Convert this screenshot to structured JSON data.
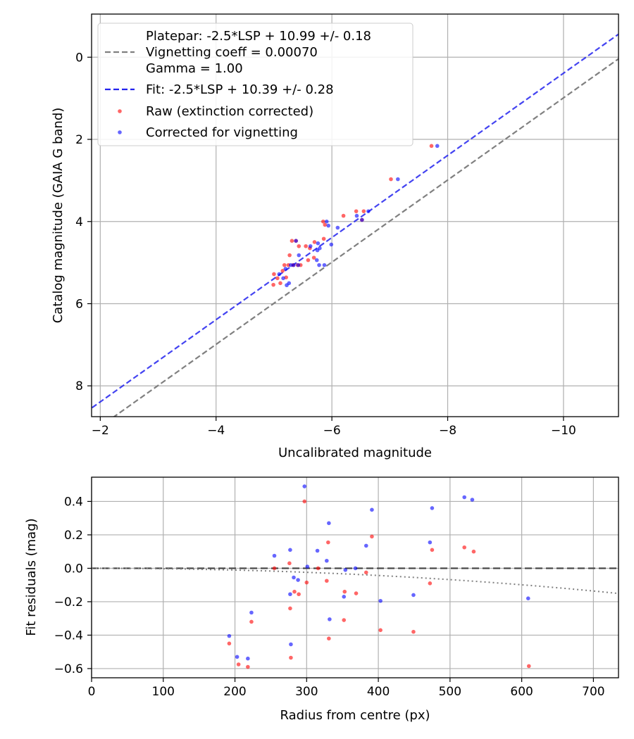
{
  "colors": {
    "raw": "#ff0000",
    "corrected": "#0000ff",
    "fit": "#2222ee",
    "platepar": "#808080",
    "grid": "#b0b0b0",
    "model": "#808080"
  },
  "chart_data": [
    {
      "type": "scatter",
      "xlabel": "Uncalibrated magnitude",
      "ylabel": "Catalog magnitude (GAIA G band)",
      "xlim": [
        -1.85,
        -10.95
      ],
      "ylim": [
        8.75,
        -1.05
      ],
      "xticks": [
        -2,
        -4,
        -6,
        -8,
        -10
      ],
      "xtick_labels": [
        "−2",
        "−4",
        "−6",
        "−8",
        "−10"
      ],
      "yticks": [
        0,
        2,
        4,
        6,
        8
      ],
      "ytick_labels": [
        "0",
        "2",
        "4",
        "6",
        "8"
      ],
      "grid": true,
      "legend": {
        "position": "top-left",
        "platepar_text": "Platepar: -2.5*LSP + 10.99 +/- 0.18",
        "vignetting_text": "Vignetting coeff = 0.00070",
        "gamma_text": "Gamma = 1.00",
        "fit_text": "Fit: -2.5*LSP + 10.39 +/- 0.28",
        "raw_text": "Raw (extinction corrected)",
        "corrected_text": "Corrected for vignetting"
      },
      "lines": [
        {
          "name": "Platepar",
          "style": "dashed",
          "color": "#808080",
          "intercept": 10.99
        },
        {
          "name": "Fit",
          "style": "dashed",
          "color": "#2222ee",
          "intercept": 10.39
        }
      ],
      "series": [
        {
          "name": "Raw (extinction corrected)",
          "color": "#ff0000",
          "points": [
            [
              -7.72,
              2.16
            ],
            [
              -7.02,
              2.97
            ],
            [
              -6.52,
              3.96
            ],
            [
              -6.42,
              3.75
            ],
            [
              -6.2,
              3.86
            ],
            [
              -6.55,
              3.75
            ],
            [
              -5.85,
              4.0
            ],
            [
              -5.88,
              4.08
            ],
            [
              -5.86,
              4.42
            ],
            [
              -5.7,
              4.5
            ],
            [
              -5.62,
              4.65
            ],
            [
              -5.55,
              4.6
            ],
            [
              -5.43,
              4.6
            ],
            [
              -5.31,
              4.47
            ],
            [
              -5.38,
              4.47
            ],
            [
              -5.27,
              4.82
            ],
            [
              -5.69,
              4.88
            ],
            [
              -5.59,
              4.94
            ],
            [
              -5.46,
              5.06
            ],
            [
              -5.41,
              5.06
            ],
            [
              -5.33,
              5.06
            ],
            [
              -5.25,
              5.06
            ],
            [
              -5.18,
              5.06
            ],
            [
              -5.21,
              5.36
            ],
            [
              -5.11,
              5.5
            ],
            [
              -5.06,
              5.38
            ],
            [
              -4.99,
              5.54
            ],
            [
              -5.0,
              5.28
            ],
            [
              -5.15,
              5.2
            ]
          ]
        },
        {
          "name": "Corrected for vignetting",
          "color": "#0000ff",
          "points": [
            [
              -7.82,
              2.16
            ],
            [
              -7.14,
              2.97
            ],
            [
              -6.63,
              3.75
            ],
            [
              -6.43,
              3.86
            ],
            [
              -6.52,
              3.96
            ],
            [
              -6.1,
              4.15
            ],
            [
              -5.94,
              4.1
            ],
            [
              -5.91,
              4.0
            ],
            [
              -5.99,
              4.56
            ],
            [
              -5.76,
              4.53
            ],
            [
              -5.79,
              4.65
            ],
            [
              -5.75,
              4.7
            ],
            [
              -5.63,
              4.6
            ],
            [
              -5.38,
              4.47
            ],
            [
              -5.43,
              4.82
            ],
            [
              -5.74,
              4.94
            ],
            [
              -5.78,
              5.06
            ],
            [
              -5.87,
              5.06
            ],
            [
              -5.34,
              5.06
            ],
            [
              -5.42,
              5.06
            ],
            [
              -5.29,
              5.06
            ],
            [
              -5.26,
              5.5
            ],
            [
              -5.22,
              5.55
            ],
            [
              -5.16,
              5.38
            ],
            [
              -5.09,
              5.28
            ],
            [
              -5.2,
              5.15
            ]
          ]
        }
      ]
    },
    {
      "type": "scatter",
      "xlabel": "Radius from centre (px)",
      "ylabel": "Fit residuals (mag)",
      "xlim": [
        0,
        735
      ],
      "ylim": [
        -0.655,
        0.545
      ],
      "xticks": [
        0,
        100,
        200,
        300,
        400,
        500,
        600,
        700
      ],
      "xtick_labels": [
        "0",
        "100",
        "200",
        "300",
        "400",
        "500",
        "600",
        "700"
      ],
      "yticks": [
        0.4,
        0.2,
        0.0,
        -0.2,
        -0.4,
        -0.6
      ],
      "ytick_labels": [
        "0.4",
        "0.2",
        "0.0",
        "−0.2",
        "−0.4",
        "−0.6"
      ],
      "grid": true,
      "reference_line": {
        "y": 0.0,
        "style": "dashed",
        "color": "#404040"
      },
      "model_curve": {
        "name": "Vignetting model",
        "style": "dotted",
        "color": "#808080",
        "coeff": 0.0007
      },
      "series": [
        {
          "name": "Raw (extinction corrected)",
          "color": "#ff0000",
          "points": [
            [
              192,
              -0.45
            ],
            [
              205,
              -0.575
            ],
            [
              218,
              -0.59
            ],
            [
              223,
              -0.32
            ],
            [
              255,
              0.0
            ],
            [
              276,
              0.03
            ],
            [
              277,
              -0.24
            ],
            [
              278,
              -0.535
            ],
            [
              283,
              -0.14
            ],
            [
              289,
              -0.155
            ],
            [
              297,
              0.4
            ],
            [
              300,
              -0.085
            ],
            [
              316,
              0.0
            ],
            [
              328,
              -0.075
            ],
            [
              330,
              0.155
            ],
            [
              331,
              -0.42
            ],
            [
              352,
              -0.31
            ],
            [
              353,
              -0.14
            ],
            [
              369,
              -0.15
            ],
            [
              383,
              -0.025
            ],
            [
              391,
              0.19
            ],
            [
              403,
              -0.37
            ],
            [
              449,
              -0.38
            ],
            [
              472,
              -0.09
            ],
            [
              475,
              0.11
            ],
            [
              520,
              0.125
            ],
            [
              533,
              0.1
            ],
            [
              610,
              -0.585
            ]
          ]
        },
        {
          "name": "Corrected for vignetting",
          "color": "#0000ff",
          "points": [
            [
              192,
              -0.405
            ],
            [
              203,
              -0.53
            ],
            [
              218,
              -0.54
            ],
            [
              223,
              -0.265
            ],
            [
              255,
              0.075
            ],
            [
              277,
              0.11
            ],
            [
              277,
              -0.155
            ],
            [
              278,
              -0.455
            ],
            [
              282,
              -0.055
            ],
            [
              288,
              -0.07
            ],
            [
              297,
              0.49
            ],
            [
              301,
              0.01
            ],
            [
              315,
              0.105
            ],
            [
              328,
              0.045
            ],
            [
              331,
              0.27
            ],
            [
              332,
              -0.305
            ],
            [
              352,
              -0.17
            ],
            [
              354,
              -0.01
            ],
            [
              368,
              0.0
            ],
            [
              383,
              0.135
            ],
            [
              391,
              0.35
            ],
            [
              403,
              -0.195
            ],
            [
              449,
              -0.16
            ],
            [
              472,
              0.155
            ],
            [
              475,
              0.36
            ],
            [
              520,
              0.425
            ],
            [
              531,
              0.41
            ],
            [
              609,
              -0.18
            ]
          ]
        }
      ]
    }
  ]
}
